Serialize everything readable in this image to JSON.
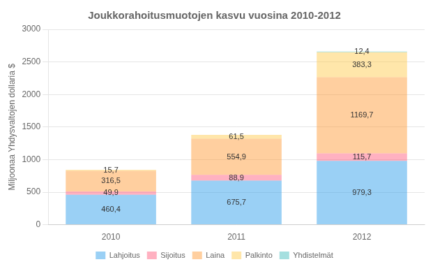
{
  "chart_data": {
    "type": "bar",
    "stacked": true,
    "title": "Joukkorahoitusmuotojen kasvu vuosina 2010-2012",
    "ylabel": "Miljoonaa Yhdysvaltojen dollaria $",
    "categories": [
      "2010",
      "2011",
      "2012"
    ],
    "series": [
      {
        "name": "Lahjoitus",
        "values": [
          460.4,
          675.7,
          979.3
        ],
        "value_labels": [
          "460,4",
          "675,7",
          "979,3"
        ]
      },
      {
        "name": "Sijoitus",
        "values": [
          49.9,
          88.9,
          115.7
        ],
        "value_labels": [
          "49,9",
          "88,9",
          "115,7"
        ]
      },
      {
        "name": "Laina",
        "values": [
          316.5,
          554.9,
          1169.7
        ],
        "value_labels": [
          "316,5",
          "554,9",
          "1169,7"
        ]
      },
      {
        "name": "Palkinto",
        "values": [
          15.7,
          61.5,
          383.3
        ],
        "value_labels": [
          "15,7",
          "61,5",
          "383,3"
        ]
      },
      {
        "name": "Yhdistelmät",
        "values": [
          0.0,
          0.0,
          12.4
        ],
        "value_labels": [
          null,
          null,
          "12,4"
        ]
      }
    ],
    "ylim": [
      0,
      3000
    ],
    "yticks": [
      0,
      500,
      1000,
      1500,
      2000,
      2500,
      3000
    ],
    "grid": true,
    "legend": "bottom",
    "data_labels": true
  }
}
